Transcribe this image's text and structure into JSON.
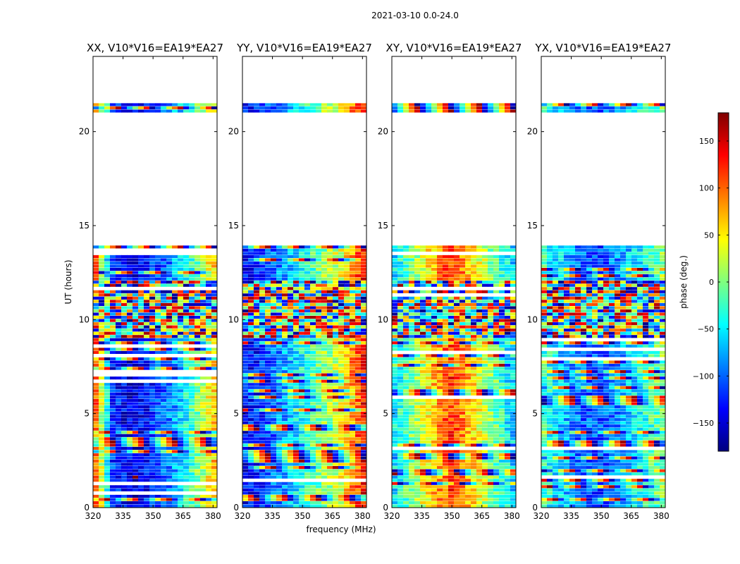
{
  "figure": {
    "suptitle": "2021-03-10 0.0-24.0",
    "ylabel": "UT (hours)",
    "xlabel": "frequency (MHz)"
  },
  "colorbar": {
    "label": "phase (deg.)",
    "range": [
      -180,
      180
    ],
    "ticks": [
      150,
      100,
      50,
      0,
      -50,
      -100,
      -150
    ],
    "tick_labels": [
      "150",
      "100",
      "50",
      "0",
      "−50",
      "−100",
      "−150"
    ],
    "colormap": "jet"
  },
  "chart_data": [
    {
      "type": "heatmap",
      "title": "XX, V10*V16=EA19*EA27",
      "xlabel": "frequency (MHz)",
      "ylabel": "UT (hours)",
      "xlim": [
        320,
        382
      ],
      "ylim": [
        0,
        24
      ],
      "xticks": [
        320,
        335,
        350,
        365,
        380
      ],
      "yticks": [
        0,
        5,
        10,
        15,
        20
      ],
      "data_rows_hours": [
        [
          0.0,
          13.8
        ],
        [
          21.0,
          21.5
        ]
      ],
      "phase_profile": {
        "freq_mhz": [
          320,
          330,
          340,
          350,
          360,
          370,
          380
        ],
        "phase_deg": [
          130,
          -120,
          -150,
          -120,
          -80,
          -20,
          60
        ]
      }
    },
    {
      "type": "heatmap",
      "title": "YY, V10*V16=EA19*EA27",
      "xlabel": "frequency (MHz)",
      "ylabel": "UT (hours)",
      "xlim": [
        320,
        382
      ],
      "ylim": [
        0,
        24
      ],
      "xticks": [
        320,
        335,
        350,
        365,
        380
      ],
      "yticks": [
        0,
        5,
        10,
        15,
        20
      ],
      "data_rows_hours": [
        [
          0.0,
          13.8
        ],
        [
          21.0,
          21.5
        ]
      ],
      "phase_profile": {
        "freq_mhz": [
          320,
          330,
          340,
          350,
          360,
          370,
          380
        ],
        "phase_deg": [
          -140,
          -120,
          -80,
          -40,
          0,
          40,
          130
        ]
      }
    },
    {
      "type": "heatmap",
      "title": "XY, V10*V16=EA19*EA27",
      "xlabel": "frequency (MHz)",
      "ylabel": "UT (hours)",
      "xlim": [
        320,
        382
      ],
      "ylim": [
        0,
        24
      ],
      "xticks": [
        320,
        335,
        350,
        365,
        380
      ],
      "yticks": [
        0,
        5,
        10,
        15,
        20
      ],
      "data_rows_hours": [
        [
          0.0,
          13.8
        ],
        [
          21.0,
          21.5
        ]
      ],
      "phase_profile": {
        "freq_mhz": [
          320,
          330,
          340,
          350,
          360,
          370,
          380
        ],
        "phase_deg": [
          -60,
          0,
          60,
          120,
          60,
          0,
          -60
        ]
      }
    },
    {
      "type": "heatmap",
      "title": "YX, V10*V16=EA19*EA27",
      "xlabel": "frequency (MHz)",
      "ylabel": "UT (hours)",
      "xlim": [
        320,
        382
      ],
      "ylim": [
        0,
        24
      ],
      "xticks": [
        320,
        335,
        350,
        365,
        380
      ],
      "yticks": [
        0,
        5,
        10,
        15,
        20
      ],
      "data_rows_hours": [
        [
          0.0,
          13.8
        ],
        [
          21.0,
          21.5
        ]
      ],
      "phase_profile": {
        "freq_mhz": [
          320,
          330,
          340,
          350,
          360,
          370,
          380
        ],
        "phase_deg": [
          -20,
          -60,
          -100,
          -110,
          -80,
          -40,
          0
        ]
      }
    }
  ]
}
